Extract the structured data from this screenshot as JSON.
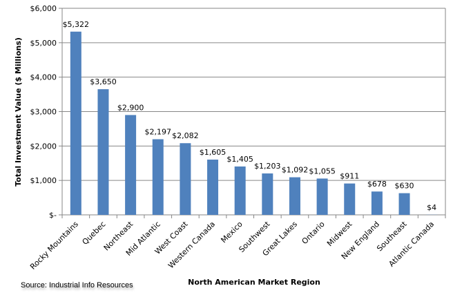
{
  "chart_data": {
    "type": "bar",
    "title": "",
    "xlabel": "North American Market Region",
    "ylabel": "Total Investment Value ($ Millions)",
    "ylim": [
      0,
      6000
    ],
    "yticks": [
      0,
      1000,
      2000,
      3000,
      4000,
      5000,
      6000
    ],
    "ytick_labels": [
      "$-",
      "$1,000",
      "$2,000",
      "$3,000",
      "$4,000",
      "$5,000",
      "$6,000"
    ],
    "grid": true,
    "categories": [
      "Rocky Mountains",
      "Quebec",
      "Northeast",
      "Mid Atlantic",
      "West Coast",
      "Western Canada",
      "Mexico",
      "Southwest",
      "Great Lakes",
      "Ontario",
      "Midwest",
      "New England",
      "Southeast",
      "Atlantic Canada"
    ],
    "values": [
      5322,
      3650,
      2900,
      2197,
      2082,
      1605,
      1405,
      1203,
      1092,
      1055,
      911,
      678,
      630,
      4
    ],
    "data_labels": [
      "$5,322",
      "$3,650",
      "$2,900",
      "$2,197",
      "$2,082",
      "$1,605",
      "$1,405",
      "$1,203",
      "$1,092",
      "$1,055",
      "$911",
      "$678",
      "$630",
      "$4"
    ],
    "bar_color": "#4F81BD",
    "grid_color": "#868686"
  },
  "source": "Source:  Industrial Info Resources"
}
